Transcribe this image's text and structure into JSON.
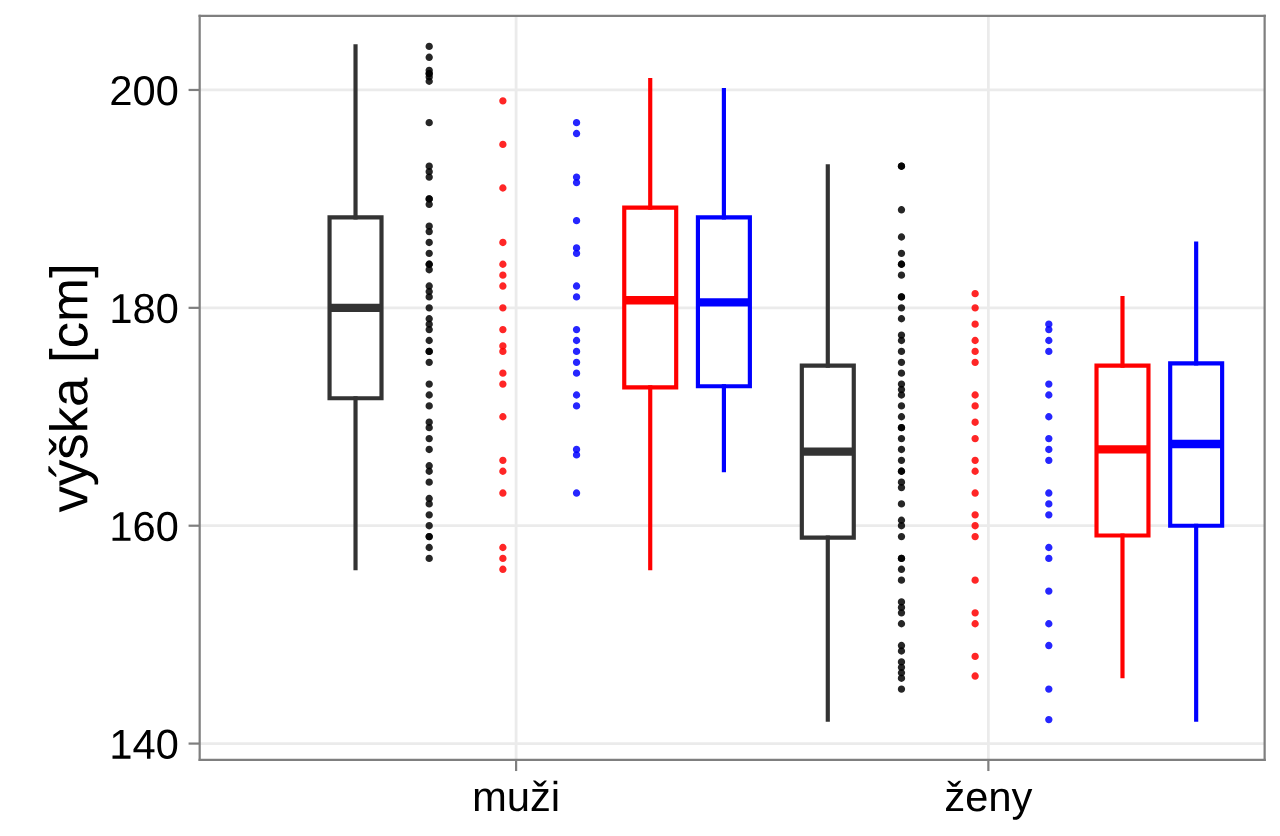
{
  "chart_data": {
    "type": "box",
    "ylabel": "výška [cm]",
    "categories": [
      "muži",
      "ženy"
    ],
    "ylim": [
      138.5,
      206.8
    ],
    "yticks": [
      140,
      160,
      180,
      200
    ],
    "grid": true,
    "marker": "circle",
    "series": [
      {
        "color": "#333333",
        "boxes": [
          {
            "low": 156.1,
            "q1": 171.7,
            "median": 180.0,
            "q3": 188.3,
            "high": 204.0
          },
          {
            "low": 142.2,
            "q1": 158.9,
            "median": 166.8,
            "q3": 174.7,
            "high": 193.0
          }
        ]
      },
      {
        "type": "scatter",
        "color": "#000000",
        "x": [
          "muži",
          "muži",
          "muži",
          "muži",
          "muži",
          "muži",
          "muži",
          "muži",
          "muži",
          "muži",
          "muži",
          "muži",
          "muži",
          "muži",
          "muži",
          "muži",
          "muži",
          "muži",
          "muži",
          "muži",
          "muži",
          "muži",
          "muži",
          "muži",
          "muži",
          "muži",
          "muži",
          "muži",
          "muži",
          "muži",
          "muži",
          "muži",
          "muži",
          "muži",
          "muži",
          "muži",
          "muži",
          "muži",
          "muži",
          "muži",
          "muži",
          "muži",
          "muži",
          "muži",
          "muži",
          "muži",
          "muži",
          "muži",
          "muži",
          "muži",
          "ženy",
          "ženy",
          "ženy",
          "ženy",
          "ženy",
          "ženy",
          "ženy",
          "ženy",
          "ženy",
          "ženy",
          "ženy",
          "ženy",
          "ženy",
          "ženy",
          "ženy",
          "ženy",
          "ženy",
          "ženy",
          "ženy",
          "ženy",
          "ženy",
          "ženy",
          "ženy",
          "ženy",
          "ženy",
          "ženy",
          "ženy",
          "ženy",
          "ženy",
          "ženy",
          "ženy",
          "ženy",
          "ženy",
          "ženy",
          "ženy",
          "ženy",
          "ženy",
          "ženy",
          "ženy",
          "ženy",
          "ženy",
          "ženy",
          "ženy",
          "ženy",
          "ženy",
          "ženy",
          "ženy",
          "ženy",
          "ženy",
          "ženy"
        ],
        "values": [
          201.8,
          201.5,
          203,
          204,
          201.2,
          200.8,
          201.5,
          197,
          192.5,
          193,
          192,
          190,
          189.5,
          190,
          187,
          186,
          187.5,
          184,
          183.5,
          185,
          182,
          181,
          180,
          181.5,
          178,
          178.5,
          176,
          175,
          176,
          173,
          171,
          172,
          169,
          168,
          169.5,
          167,
          165,
          164,
          165.5,
          162,
          161,
          162.5,
          159,
          160,
          159,
          158,
          157,
          184,
          179,
          177,
          193.0,
          193.0,
          189,
          185,
          184,
          186.5,
          184,
          183,
          181,
          180,
          179,
          181,
          177,
          176,
          177.5,
          175,
          173,
          172,
          171,
          172.5,
          169,
          168,
          167,
          169,
          165,
          164,
          163.5,
          165,
          162,
          160,
          159,
          160.5,
          157,
          156,
          155,
          157,
          153,
          152,
          151,
          152.5,
          149,
          148.5,
          147,
          147.5,
          146.5,
          145,
          146,
          166,
          174,
          170
        ]
      },
      {
        "type": "scatter",
        "color": "#ff0000",
        "x": [
          "muži",
          "muži",
          "muži",
          "muži",
          "muži",
          "muži",
          "muži",
          "muži",
          "muži",
          "muži",
          "muži",
          "muži",
          "muži",
          "muži",
          "muži",
          "muži",
          "muži",
          "muži",
          "muži",
          "muži",
          "ženy",
          "ženy",
          "ženy",
          "ženy",
          "ženy",
          "ženy",
          "ženy",
          "ženy",
          "ženy",
          "ženy",
          "ženy",
          "ženy",
          "ženy",
          "ženy",
          "ženy",
          "ženy",
          "ženy",
          "ženy",
          "ženy",
          "ženy",
          "ženy"
        ],
        "values": [
          199,
          195,
          191,
          186,
          184,
          182,
          183,
          180,
          178,
          176,
          174,
          173,
          170,
          166,
          165,
          163,
          158,
          157,
          156,
          176.5,
          181.3,
          178.5,
          180,
          177,
          175,
          176,
          172,
          171,
          168,
          166,
          165,
          169.5,
          163,
          160,
          161,
          159,
          155,
          151,
          148,
          146.2,
          152
        ]
      },
      {
        "type": "scatter",
        "color": "#0000ff",
        "x": [
          "muži",
          "muži",
          "muži",
          "muži",
          "muži",
          "muži",
          "muži",
          "muži",
          "muži",
          "muži",
          "muži",
          "muži",
          "muži",
          "muži",
          "muži",
          "muži",
          "muži",
          "muži",
          "muži",
          "ženy",
          "ženy",
          "ženy",
          "ženy",
          "ženy",
          "ženy",
          "ženy",
          "ženy",
          "ženy",
          "ženy",
          "ženy",
          "ženy",
          "ženy",
          "ženy",
          "ženy",
          "ženy",
          "ženy",
          "ženy",
          "ženy",
          "ženy"
        ],
        "values": [
          197,
          196,
          192,
          191.5,
          188,
          185,
          185.5,
          182,
          181,
          178,
          177,
          175,
          174,
          172,
          171,
          167,
          163,
          166.5,
          176,
          178.5,
          176,
          178,
          177,
          173,
          172,
          170,
          168,
          167,
          166,
          163,
          162,
          161,
          158,
          157,
          154,
          151,
          149,
          145,
          142.2
        ]
      },
      {
        "color": "#ff0000",
        "boxes": [
          {
            "low": 156.1,
            "q1": 172.7,
            "median": 180.7,
            "q3": 189.2,
            "high": 200.9
          },
          {
            "low": 146.2,
            "q1": 159.1,
            "median": 167.0,
            "q3": 174.7,
            "high": 180.9
          }
        ]
      },
      {
        "color": "#0000ff",
        "boxes": [
          {
            "low": 165.1,
            "q1": 172.8,
            "median": 180.5,
            "q3": 188.3,
            "high": 200.0
          },
          {
            "low": 142.2,
            "q1": 160.0,
            "median": 167.5,
            "q3": 174.9,
            "high": 185.9
          }
        ]
      }
    ]
  }
}
